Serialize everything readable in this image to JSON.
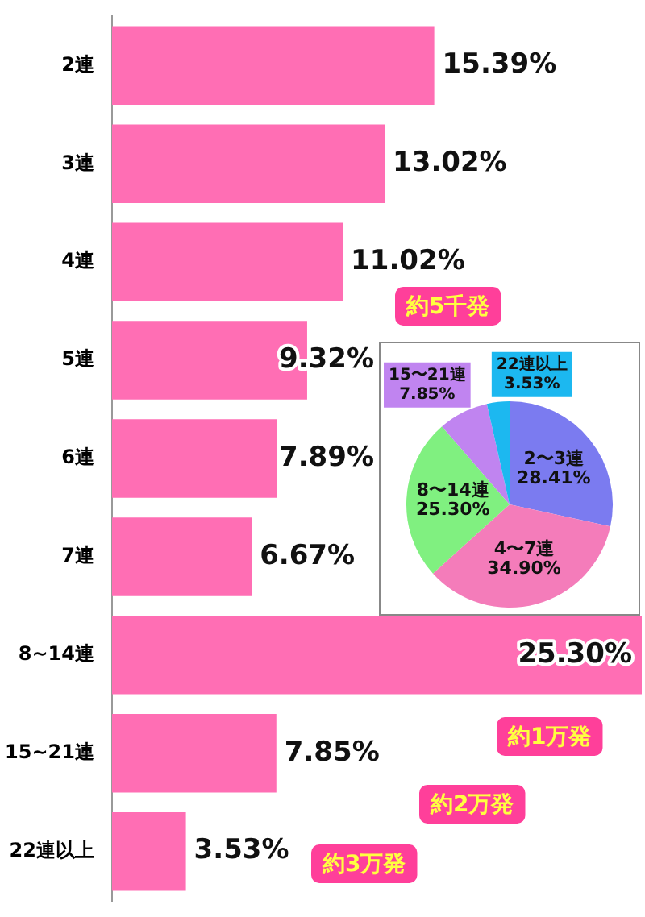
{
  "chart_data": [
    {
      "type": "bar",
      "orientation": "horizontal",
      "categories": [
        "2連",
        "3連",
        "4連",
        "5連",
        "6連",
        "7連",
        "8~14連",
        "15~21連",
        "22連以上"
      ],
      "values": [
        15.39,
        13.02,
        11.02,
        9.32,
        7.89,
        6.67,
        25.3,
        7.85,
        3.53
      ],
      "color": "#ff6eb4",
      "value_labels": [
        "15.39%",
        "13.02%",
        "11.02%",
        "9.32%",
        "7.89%",
        "6.67%",
        "25.30%",
        "7.85%",
        "3.53%"
      ],
      "tick_labels": "y",
      "annotations": [
        "約5千発",
        "約1万発",
        "約2万発",
        "約3万発"
      ]
    },
    {
      "type": "pie",
      "categories": [
        "2〜3連",
        "4〜7連",
        "8〜14連",
        "15〜21連",
        "22連以上"
      ],
      "values": [
        28.41,
        34.9,
        25.3,
        7.85,
        3.53
      ],
      "colors": [
        "#7b7bf0",
        "#f47cba",
        "#80f080",
        "#c084f0",
        "#1cb8f0"
      ],
      "value_labels": [
        "28.41%",
        "34.90%",
        "25.30%",
        "7.85%",
        "3.53%"
      ]
    }
  ]
}
